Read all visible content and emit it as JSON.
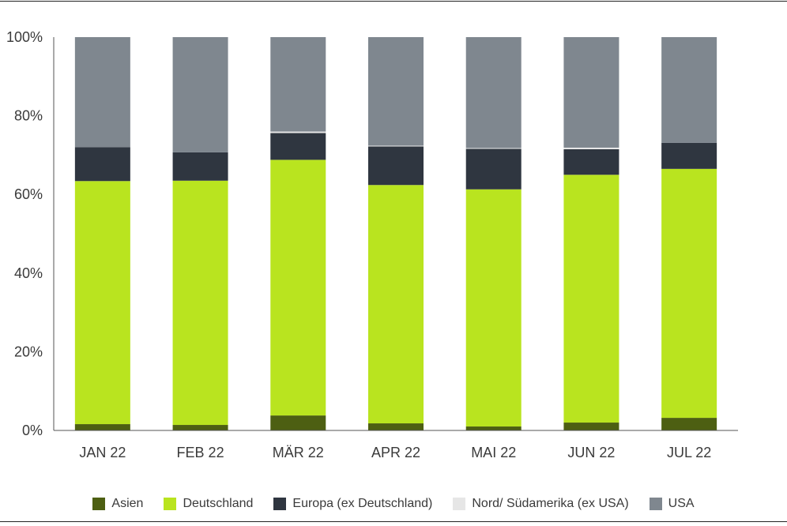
{
  "chart_data": {
    "type": "bar",
    "stacked": true,
    "categories": [
      "JAN 22",
      "FEB 22",
      "MÄR 22",
      "APR 22",
      "MAI 22",
      "JUN 22",
      "JUL 22"
    ],
    "series": [
      {
        "name": "Asien",
        "color": "#4d5f12",
        "values": [
          1.6,
          1.4,
          3.8,
          1.8,
          1.0,
          2.0,
          3.2
        ]
      },
      {
        "name": "Deutschland",
        "color": "#b9e41f",
        "values": [
          61.8,
          62.1,
          65.0,
          60.6,
          60.3,
          63.0,
          63.3
        ]
      },
      {
        "name": "Europa (ex Deutschland)",
        "color": "#2f3640",
        "values": [
          8.6,
          7.2,
          6.8,
          9.8,
          10.3,
          6.5,
          6.6
        ]
      },
      {
        "name": "Nord/ Südamerika (ex USA)",
        "color": "#e6e6e6",
        "values": [
          0.0,
          0.0,
          0.4,
          0.2,
          0.2,
          0.4,
          0.0
        ]
      },
      {
        "name": "USA",
        "color": "#7f878f",
        "values": [
          28.0,
          29.3,
          24.0,
          27.6,
          28.2,
          28.1,
          26.9
        ]
      }
    ],
    "yticks": [
      "0%",
      "20%",
      "40%",
      "60%",
      "80%",
      "100%"
    ],
    "ylim": [
      0,
      100
    ],
    "legend_position": "bottom",
    "grid": false
  }
}
